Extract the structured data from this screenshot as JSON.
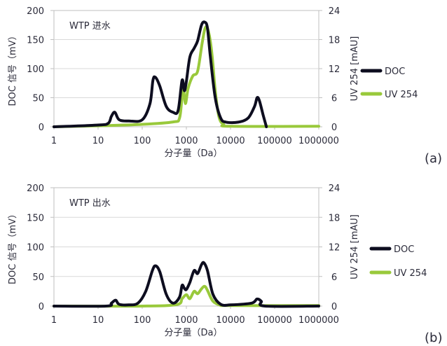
{
  "colors": {
    "doc": "#0d0d1f",
    "uv": "#99c93b",
    "axis": "#bfbfbf",
    "text": "#2b2b3a"
  },
  "chart_data": [
    {
      "type": "line",
      "title": "WTP 进水",
      "panel_label": "(a)",
      "xlabel": "分子量（Da）",
      "ylabel": "DOC 信号（mV）",
      "y2label": "UV 254 [mAU]",
      "x_scale": "log",
      "xlim": [
        1,
        1000000
      ],
      "ylim": [
        0,
        200
      ],
      "y2lim": [
        0,
        24
      ],
      "x_ticks": [
        "1",
        "10",
        "100",
        "1000",
        "10000",
        "100000",
        "1000000"
      ],
      "y_ticks": [
        "0",
        "50",
        "100",
        "150",
        "200"
      ],
      "y2_ticks": [
        "0",
        "6",
        "12",
        "18",
        "24"
      ],
      "legend_position": "right",
      "series": [
        {
          "name": "DOC",
          "axis": "left",
          "points": [
            [
              1,
              0
            ],
            [
              10,
              3
            ],
            [
              17,
              6
            ],
            [
              20,
              18
            ],
            [
              24,
              25
            ],
            [
              30,
              12
            ],
            [
              50,
              10
            ],
            [
              100,
              12
            ],
            [
              150,
              40
            ],
            [
              175,
              80
            ],
            [
              200,
              85
            ],
            [
              250,
              70
            ],
            [
              350,
              35
            ],
            [
              500,
              25
            ],
            [
              650,
              28
            ],
            [
              800,
              80
            ],
            [
              900,
              62
            ],
            [
              1000,
              78
            ],
            [
              1200,
              120
            ],
            [
              1500,
              135
            ],
            [
              1800,
              148
            ],
            [
              2200,
              175
            ],
            [
              2600,
              180
            ],
            [
              3000,
              170
            ],
            [
              3500,
              120
            ],
            [
              4500,
              50
            ],
            [
              6000,
              15
            ],
            [
              8000,
              8
            ],
            [
              15000,
              8
            ],
            [
              25000,
              15
            ],
            [
              35000,
              35
            ],
            [
              40000,
              50
            ],
            [
              45000,
              45
            ],
            [
              55000,
              20
            ],
            [
              65000,
              0
            ]
          ]
        },
        {
          "name": "UV 254",
          "axis": "right",
          "points": [
            [
              1,
              0
            ],
            [
              10,
              0.2
            ],
            [
              100,
              0.5
            ],
            [
              500,
              1.0
            ],
            [
              700,
              1.8
            ],
            [
              800,
              6.5
            ],
            [
              850,
              8.5
            ],
            [
              950,
              4.8
            ],
            [
              1100,
              8.0
            ],
            [
              1400,
              10.5
            ],
            [
              1800,
              11.5
            ],
            [
              2300,
              17.5
            ],
            [
              2700,
              20.5
            ],
            [
              3200,
              19.5
            ],
            [
              3800,
              15.0
            ],
            [
              4500,
              7.5
            ],
            [
              5500,
              2.0
            ],
            [
              7000,
              0.5
            ],
            [
              10000,
              0.1
            ],
            [
              1000000,
              0.1
            ]
          ]
        }
      ]
    },
    {
      "type": "line",
      "title": "WTP 出水",
      "panel_label": "(b)",
      "xlabel": "分子量（Da）",
      "ylabel": "DOC 信号（mV）",
      "y2label": "UV 254 [mAU]",
      "x_scale": "log",
      "xlim": [
        1,
        1000000
      ],
      "ylim": [
        0,
        200
      ],
      "y2lim": [
        0,
        24
      ],
      "x_ticks": [
        "1",
        "10",
        "100",
        "1000",
        "10000",
        "100000",
        "1000000"
      ],
      "y_ticks": [
        "0",
        "50",
        "100",
        "150",
        "200"
      ],
      "y2_ticks": [
        "0",
        "6",
        "12",
        "18",
        "24"
      ],
      "legend_position": "right",
      "series": [
        {
          "name": "DOC",
          "axis": "left",
          "points": [
            [
              1,
              0
            ],
            [
              15,
              0
            ],
            [
              20,
              5
            ],
            [
              25,
              10
            ],
            [
              30,
              3
            ],
            [
              50,
              2
            ],
            [
              80,
              5
            ],
            [
              120,
              25
            ],
            [
              170,
              60
            ],
            [
              200,
              68
            ],
            [
              250,
              58
            ],
            [
              350,
              20
            ],
            [
              500,
              5
            ],
            [
              700,
              15
            ],
            [
              800,
              35
            ],
            [
              900,
              30
            ],
            [
              1000,
              28
            ],
            [
              1200,
              40
            ],
            [
              1500,
              60
            ],
            [
              1800,
              55
            ],
            [
              2200,
              70
            ],
            [
              2500,
              73
            ],
            [
              3000,
              60
            ],
            [
              4000,
              20
            ],
            [
              6000,
              3
            ],
            [
              10000,
              2
            ],
            [
              30000,
              5
            ],
            [
              40000,
              12
            ],
            [
              50000,
              8
            ],
            [
              60000,
              0
            ],
            [
              1000000,
              0
            ]
          ]
        },
        {
          "name": "UV 254",
          "axis": "right",
          "points": [
            [
              1,
              0
            ],
            [
              100,
              0
            ],
            [
              600,
              0.3
            ],
            [
              800,
              1.5
            ],
            [
              1000,
              2.3
            ],
            [
              1200,
              1.5
            ],
            [
              1500,
              3.0
            ],
            [
              1800,
              2.5
            ],
            [
              2200,
              3.5
            ],
            [
              2600,
              4.0
            ],
            [
              3000,
              3.2
            ],
            [
              4000,
              1.0
            ],
            [
              6000,
              0.2
            ],
            [
              10000,
              0.1
            ],
            [
              1000000,
              0.1
            ]
          ]
        }
      ]
    }
  ]
}
